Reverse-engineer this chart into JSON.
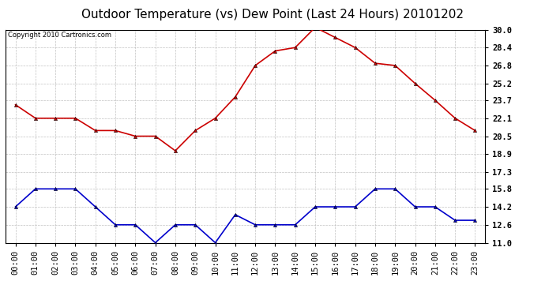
{
  "title": "Outdoor Temperature (vs) Dew Point (Last 24 Hours) 20101202",
  "copyright": "Copyright 2010 Cartronics.com",
  "x_labels": [
    "00:00",
    "01:00",
    "02:00",
    "03:00",
    "04:00",
    "05:00",
    "06:00",
    "07:00",
    "08:00",
    "09:00",
    "10:00",
    "11:00",
    "12:00",
    "13:00",
    "14:00",
    "15:00",
    "16:00",
    "17:00",
    "18:00",
    "19:00",
    "20:00",
    "21:00",
    "22:00",
    "23:00"
  ],
  "temp_data": [
    23.3,
    22.1,
    22.1,
    22.1,
    21.0,
    21.0,
    20.5,
    20.5,
    19.2,
    21.0,
    22.1,
    24.0,
    26.8,
    28.1,
    28.4,
    30.2,
    29.3,
    28.4,
    27.0,
    26.8,
    25.2,
    23.7,
    22.1,
    21.0
  ],
  "dew_data": [
    14.2,
    15.8,
    15.8,
    15.8,
    14.2,
    12.6,
    12.6,
    11.0,
    12.6,
    12.6,
    11.0,
    13.5,
    12.6,
    12.6,
    12.6,
    14.2,
    14.2,
    14.2,
    15.8,
    15.8,
    14.2,
    14.2,
    13.0,
    13.0
  ],
  "temp_color": "#cc0000",
  "dew_color": "#0000cc",
  "bg_color": "#ffffff",
  "grid_color": "#bbbbbb",
  "plot_bg": "#ffffff",
  "ylim_min": 11.0,
  "ylim_max": 30.0,
  "yticks": [
    11.0,
    12.6,
    14.2,
    15.8,
    17.3,
    18.9,
    20.5,
    22.1,
    23.7,
    25.2,
    26.8,
    28.4,
    30.0
  ],
  "title_fontsize": 11,
  "copyright_fontsize": 6,
  "tick_fontsize": 7.5,
  "marker": "^",
  "markersize": 3,
  "linewidth": 1.2
}
